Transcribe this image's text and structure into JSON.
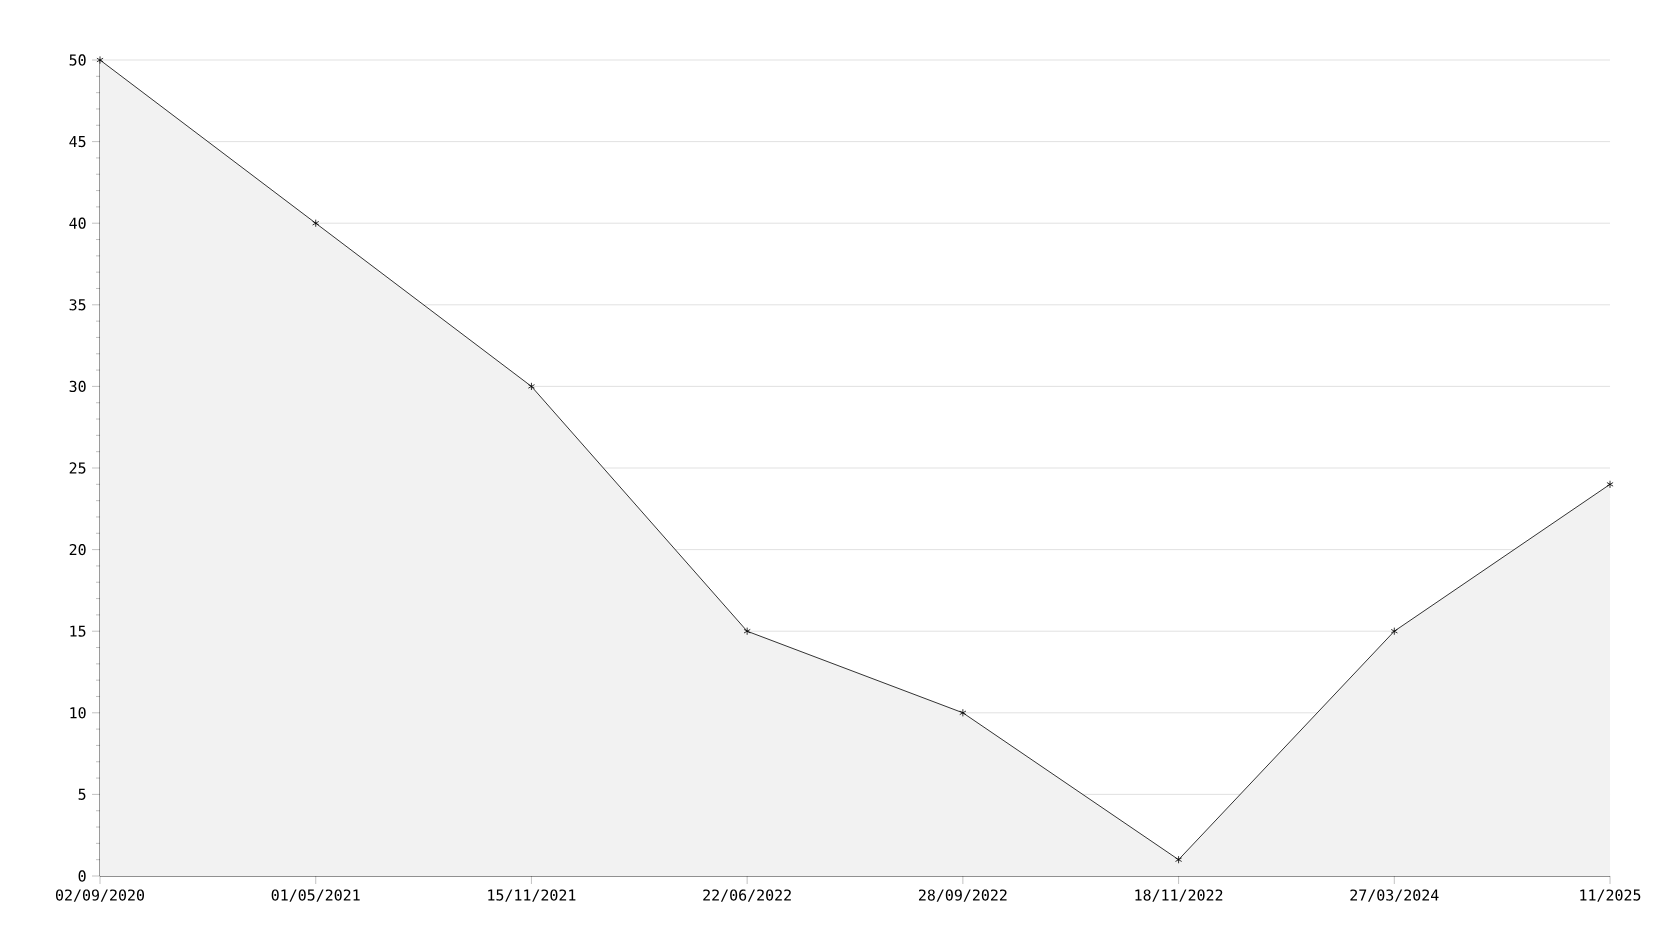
{
  "chart_data": {
    "type": "area",
    "categories": [
      "02/09/2020",
      "01/05/2021",
      "15/11/2021",
      "22/06/2022",
      "28/09/2022",
      "18/11/2022",
      "27/03/2024",
      "11/2025"
    ],
    "series": [
      {
        "color": "#f2f2f2",
        "values": [
          50,
          40,
          30,
          15,
          10,
          1,
          15,
          24
        ]
      }
    ],
    "ylim": [
      0,
      50
    ],
    "yticks": [
      0,
      5,
      10,
      15,
      20,
      25,
      30,
      35,
      40,
      45,
      50
    ],
    "grid": "y",
    "marker": "cross",
    "line_style": "solid"
  }
}
